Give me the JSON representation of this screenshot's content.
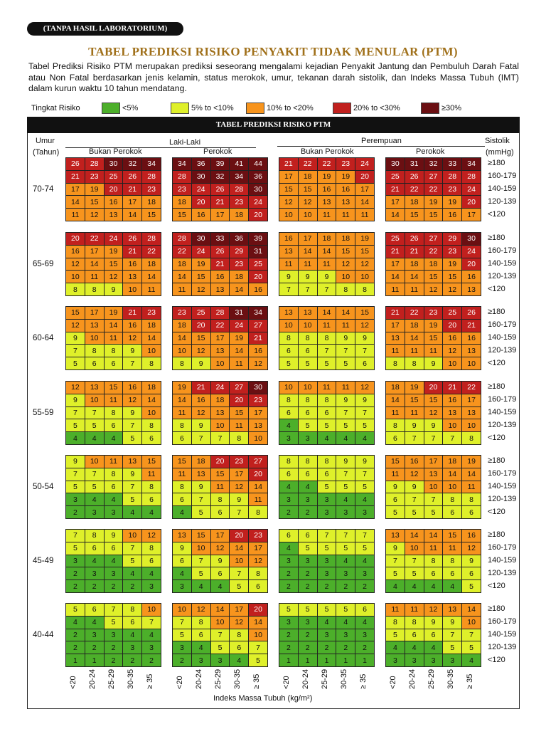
{
  "badge": "(TANPA HASIL LABORATORIUM)",
  "title": "TABEL PREDIKSI RISIKO PENYAKIT TIDAK MENULAR (PTM)",
  "description": "Tabel Prediksi Risiko PTM merupakan prediksi seseorang mengalami kejadian Penyakit Jantung dan Pembuluh Darah Fatal atau Non Fatal berdasarkan jenis kelamin, status merokok, umur, tekanan darah sistolik, dan Indeks Massa Tubuh (IMT) dalam kurun waktu 10 tahun mendatang.",
  "legend": {
    "label": "Tingkat Risiko",
    "items": [
      {
        "label": "<5%",
        "color": "#4caf2a"
      },
      {
        "label": "5% to <10%",
        "color": "#dff02a"
      },
      {
        "label": "10% to <20%",
        "color": "#f7941d"
      },
      {
        "label": "20% to <30%",
        "color": "#c1201e"
      },
      {
        "label": "≥30%",
        "color": "#6b0f12"
      }
    ]
  },
  "table_title": "TABEL PREDIKSI RISIKO PTM",
  "headers": {
    "umur": "Umur",
    "tahun": "(Tahun)",
    "male": "Laki-Laki",
    "female": "Perempuan",
    "non_smoker": "Bukan Perokok",
    "smoker": "Perokok",
    "systolic": "Sistolik",
    "mmhg": "(mmHg)"
  },
  "systolic_labels": [
    "≥180",
    "160-179",
    "140-159",
    "120-139",
    "<120"
  ],
  "bmi_labels": [
    "<20",
    "20-24",
    "25-29",
    "30-35",
    "≥ 35"
  ],
  "bmi_axis_label": "Indeks Massa Tubuh (kg/m²)",
  "age_groups": [
    {
      "label": "70-74",
      "grids": [
        [
          [
            26,
            28,
            30,
            32,
            34
          ],
          [
            21,
            23,
            25,
            26,
            28
          ],
          [
            17,
            19,
            20,
            21,
            23
          ],
          [
            14,
            15,
            16,
            17,
            18
          ],
          [
            11,
            12,
            13,
            14,
            15
          ]
        ],
        [
          [
            34,
            36,
            39,
            41,
            44
          ],
          [
            28,
            30,
            32,
            34,
            36
          ],
          [
            23,
            24,
            26,
            28,
            30
          ],
          [
            18,
            20,
            21,
            23,
            24
          ],
          [
            15,
            16,
            17,
            18,
            20
          ]
        ],
        [
          [
            21,
            22,
            22,
            23,
            24
          ],
          [
            17,
            18,
            19,
            19,
            20
          ],
          [
            15,
            15,
            16,
            16,
            17
          ],
          [
            12,
            12,
            13,
            13,
            14
          ],
          [
            10,
            10,
            11,
            11,
            11
          ]
        ],
        [
          [
            30,
            31,
            32,
            33,
            34
          ],
          [
            25,
            26,
            27,
            28,
            28
          ],
          [
            21,
            22,
            22,
            23,
            24
          ],
          [
            17,
            18,
            19,
            19,
            20
          ],
          [
            14,
            15,
            15,
            16,
            17
          ]
        ]
      ]
    },
    {
      "label": "65-69",
      "grids": [
        [
          [
            20,
            22,
            24,
            26,
            28
          ],
          [
            16,
            17,
            19,
            21,
            22
          ],
          [
            12,
            14,
            15,
            16,
            18
          ],
          [
            10,
            11,
            12,
            13,
            14
          ],
          [
            8,
            8,
            9,
            10,
            11
          ]
        ],
        [
          [
            28,
            30,
            33,
            36,
            39
          ],
          [
            22,
            24,
            26,
            29,
            31
          ],
          [
            18,
            19,
            21,
            23,
            25
          ],
          [
            14,
            15,
            16,
            18,
            20
          ],
          [
            11,
            12,
            13,
            14,
            16
          ]
        ],
        [
          [
            16,
            17,
            18,
            18,
            19
          ],
          [
            13,
            14,
            14,
            15,
            15
          ],
          [
            11,
            11,
            11,
            12,
            12
          ],
          [
            9,
            9,
            9,
            10,
            10
          ],
          [
            7,
            7,
            7,
            8,
            8
          ]
        ],
        [
          [
            25,
            26,
            27,
            29,
            30
          ],
          [
            21,
            21,
            22,
            23,
            24
          ],
          [
            17,
            18,
            18,
            19,
            20
          ],
          [
            14,
            14,
            15,
            15,
            16
          ],
          [
            11,
            11,
            12,
            12,
            13
          ]
        ]
      ]
    },
    {
      "label": "60-64",
      "grids": [
        [
          [
            15,
            17,
            19,
            21,
            23
          ],
          [
            12,
            13,
            14,
            16,
            18
          ],
          [
            9,
            10,
            11,
            12,
            14
          ],
          [
            7,
            8,
            8,
            9,
            10
          ],
          [
            5,
            6,
            6,
            7,
            8
          ]
        ],
        [
          [
            23,
            25,
            28,
            31,
            34
          ],
          [
            18,
            20,
            22,
            24,
            27
          ],
          [
            14,
            15,
            17,
            19,
            21
          ],
          [
            10,
            12,
            13,
            14,
            16
          ],
          [
            8,
            9,
            10,
            11,
            12
          ]
        ],
        [
          [
            13,
            13,
            14,
            14,
            15
          ],
          [
            10,
            10,
            11,
            11,
            12
          ],
          [
            8,
            8,
            8,
            9,
            9
          ],
          [
            6,
            6,
            7,
            7,
            7
          ],
          [
            5,
            5,
            5,
            5,
            6
          ]
        ],
        [
          [
            21,
            22,
            23,
            25,
            26
          ],
          [
            17,
            18,
            19,
            20,
            21
          ],
          [
            13,
            14,
            15,
            16,
            16
          ],
          [
            11,
            11,
            11,
            12,
            13
          ],
          [
            8,
            8,
            9,
            10,
            10
          ]
        ]
      ]
    },
    {
      "label": "55-59",
      "grids": [
        [
          [
            12,
            13,
            15,
            16,
            18
          ],
          [
            9,
            10,
            11,
            12,
            14
          ],
          [
            7,
            7,
            8,
            9,
            10
          ],
          [
            5,
            5,
            6,
            7,
            8
          ],
          [
            4,
            4,
            4,
            5,
            6
          ]
        ],
        [
          [
            19,
            21,
            24,
            27,
            30
          ],
          [
            14,
            16,
            18,
            20,
            23
          ],
          [
            11,
            12,
            13,
            15,
            17
          ],
          [
            8,
            9,
            10,
            11,
            13
          ],
          [
            6,
            7,
            7,
            8,
            10
          ]
        ],
        [
          [
            10,
            10,
            11,
            11,
            12
          ],
          [
            8,
            8,
            8,
            9,
            9
          ],
          [
            6,
            6,
            6,
            7,
            7
          ],
          [
            4,
            5,
            5,
            5,
            5
          ],
          [
            3,
            3,
            4,
            4,
            4
          ]
        ],
        [
          [
            18,
            19,
            20,
            21,
            22
          ],
          [
            14,
            15,
            15,
            16,
            17
          ],
          [
            11,
            11,
            12,
            13,
            13
          ],
          [
            8,
            9,
            9,
            10,
            10
          ],
          [
            6,
            7,
            7,
            7,
            8
          ]
        ]
      ]
    },
    {
      "label": "50-54",
      "grids": [
        [
          [
            9,
            10,
            11,
            13,
            15
          ],
          [
            7,
            7,
            8,
            9,
            11
          ],
          [
            5,
            5,
            6,
            7,
            8
          ],
          [
            3,
            4,
            4,
            5,
            6
          ],
          [
            2,
            3,
            3,
            4,
            4
          ]
        ],
        [
          [
            15,
            18,
            20,
            23,
            27
          ],
          [
            11,
            13,
            15,
            17,
            20
          ],
          [
            8,
            9,
            11,
            12,
            14
          ],
          [
            6,
            7,
            8,
            9,
            11
          ],
          [
            4,
            5,
            6,
            7,
            8
          ]
        ],
        [
          [
            8,
            8,
            8,
            9,
            9
          ],
          [
            6,
            6,
            6,
            7,
            7
          ],
          [
            4,
            4,
            5,
            5,
            5
          ],
          [
            3,
            3,
            3,
            4,
            4
          ],
          [
            2,
            2,
            3,
            3,
            3
          ]
        ],
        [
          [
            15,
            16,
            17,
            18,
            19
          ],
          [
            11,
            12,
            13,
            14,
            14
          ],
          [
            9,
            9,
            10,
            10,
            11
          ],
          [
            6,
            7,
            7,
            8,
            8
          ],
          [
            5,
            5,
            5,
            6,
            6
          ]
        ]
      ]
    },
    {
      "label": "45-49",
      "grids": [
        [
          [
            7,
            8,
            9,
            10,
            12
          ],
          [
            5,
            6,
            6,
            7,
            8
          ],
          [
            3,
            4,
            4,
            5,
            6
          ],
          [
            2,
            3,
            3,
            4,
            4
          ],
          [
            2,
            2,
            2,
            2,
            3
          ]
        ],
        [
          [
            13,
            15,
            17,
            20,
            23
          ],
          [
            9,
            10,
            12,
            14,
            17
          ],
          [
            6,
            7,
            9,
            10,
            12
          ],
          [
            4,
            5,
            6,
            7,
            8
          ],
          [
            3,
            4,
            4,
            5,
            6
          ]
        ],
        [
          [
            6,
            6,
            7,
            7,
            7
          ],
          [
            4,
            5,
            5,
            5,
            5
          ],
          [
            3,
            3,
            3,
            4,
            4
          ],
          [
            2,
            2,
            3,
            3,
            3
          ],
          [
            2,
            2,
            2,
            2,
            2
          ]
        ],
        [
          [
            13,
            14,
            14,
            15,
            16
          ],
          [
            9,
            10,
            11,
            11,
            12
          ],
          [
            7,
            7,
            8,
            8,
            9
          ],
          [
            5,
            5,
            6,
            6,
            6
          ],
          [
            4,
            4,
            4,
            4,
            5
          ]
        ]
      ]
    },
    {
      "label": "40-44",
      "grids": [
        [
          [
            5,
            6,
            7,
            8,
            10
          ],
          [
            4,
            4,
            5,
            6,
            7
          ],
          [
            2,
            3,
            3,
            4,
            4
          ],
          [
            2,
            2,
            2,
            3,
            3
          ],
          [
            1,
            1,
            2,
            2,
            2
          ]
        ],
        [
          [
            10,
            12,
            14,
            17,
            20
          ],
          [
            7,
            8,
            10,
            12,
            14
          ],
          [
            5,
            6,
            7,
            8,
            10
          ],
          [
            3,
            4,
            5,
            6,
            7
          ],
          [
            2,
            3,
            3,
            4,
            5
          ]
        ],
        [
          [
            5,
            5,
            5,
            5,
            6
          ],
          [
            3,
            3,
            4,
            4,
            4
          ],
          [
            2,
            2,
            3,
            3,
            3
          ],
          [
            2,
            2,
            2,
            2,
            2
          ],
          [
            1,
            1,
            1,
            1,
            1
          ]
        ],
        [
          [
            11,
            11,
            12,
            13,
            14
          ],
          [
            8,
            8,
            9,
            9,
            10
          ],
          [
            5,
            6,
            6,
            7,
            7
          ],
          [
            4,
            4,
            4,
            5,
            5
          ],
          [
            3,
            3,
            3,
            3,
            4
          ]
        ]
      ]
    }
  ]
}
